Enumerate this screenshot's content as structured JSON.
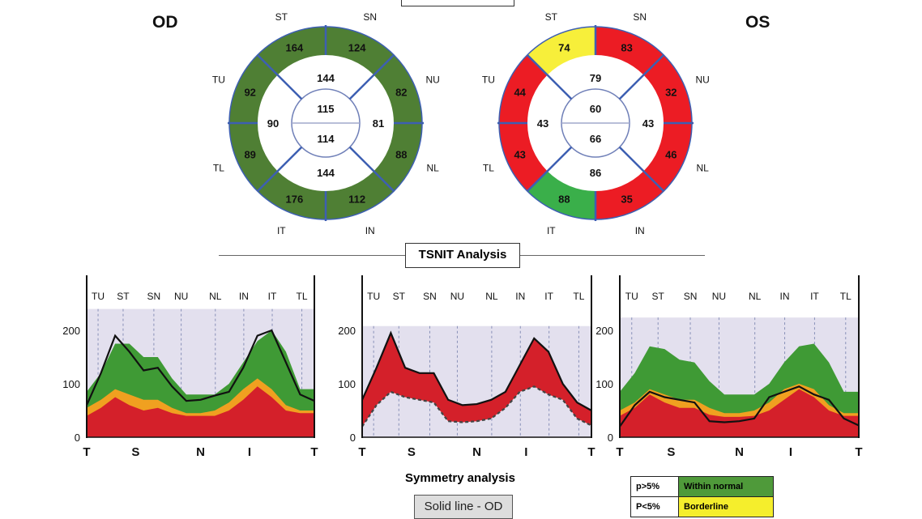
{
  "headings": {
    "od": "OD",
    "os": "OS",
    "tsnit": "TSNIT Analysis",
    "symmetry": "Symmetry analysis",
    "solid_line": "Solid line - OD",
    "top_box": ""
  },
  "colors": {
    "od_green": "#4f7f34",
    "os_red": "#ec1c24",
    "os_yellow": "#f7ef3a",
    "os_green": "#3aaf4a",
    "divider": "#3d5fb2",
    "chart_bg": "#e3e0ee",
    "band_green": "#3f9a35",
    "band_yellow": "#f0a020",
    "band_red": "#d4202a"
  },
  "sector_labels": [
    "ST",
    "SN",
    "NU",
    "NL",
    "IN",
    "IT",
    "TL",
    "TU"
  ],
  "od_map": {
    "outer": {
      "ST": {
        "value": "164",
        "status": "normal"
      },
      "SN": {
        "value": "124",
        "status": "normal"
      },
      "NU": {
        "value": "82",
        "status": "normal"
      },
      "NL": {
        "value": "88",
        "status": "normal"
      },
      "IN": {
        "value": "112",
        "status": "normal"
      },
      "IT": {
        "value": "176",
        "status": "normal"
      },
      "TL": {
        "value": "89",
        "status": "normal"
      },
      "TU": {
        "value": "92",
        "status": "normal"
      }
    },
    "inner": {
      "superior": "144",
      "nasal": "81",
      "inferior": "144",
      "temporal": "90"
    },
    "center": {
      "upper": "115",
      "lower": "114"
    }
  },
  "os_map": {
    "outer": {
      "ST": {
        "value": "74",
        "status": "borderline"
      },
      "SN": {
        "value": "83",
        "status": "outside"
      },
      "NU": {
        "value": "32",
        "status": "outside"
      },
      "NL": {
        "value": "46",
        "status": "outside"
      },
      "IN": {
        "value": "35",
        "status": "outside"
      },
      "IT": {
        "value": "88",
        "status": "normal_bright"
      },
      "TL": {
        "value": "43",
        "status": "outside"
      },
      "TU": {
        "value": "44",
        "status": "outside"
      }
    },
    "inner": {
      "superior": "79",
      "nasal": "43",
      "inferior": "86",
      "temporal": "43"
    },
    "center": {
      "upper": "60",
      "lower": "66"
    }
  },
  "chart_data": [
    {
      "type": "area",
      "panel": "OD",
      "top_labels": [
        "TU",
        "ST",
        "SN",
        "NU",
        "NL",
        "IN",
        "IT",
        "TL"
      ],
      "bottom_labels": [
        "T",
        "S",
        "N",
        "I",
        "T"
      ],
      "yticks": [
        "0",
        "100",
        "200"
      ],
      "ylim": [
        0,
        240
      ],
      "bands": {
        "green_upper": [
          85,
          120,
          175,
          175,
          150,
          150,
          110,
          80,
          80,
          80,
          100,
          140,
          180,
          200,
          160,
          90,
          90
        ],
        "yellow_upper": [
          55,
          70,
          90,
          80,
          70,
          70,
          55,
          45,
          45,
          50,
          65,
          90,
          110,
          90,
          60,
          50,
          50
        ],
        "red_upper": [
          40,
          55,
          75,
          60,
          50,
          55,
          45,
          40,
          40,
          40,
          50,
          70,
          95,
          75,
          50,
          45,
          45
        ]
      },
      "line": [
        60,
        120,
        190,
        160,
        125,
        130,
        95,
        68,
        70,
        78,
        85,
        130,
        190,
        200,
        140,
        80,
        68
      ]
    },
    {
      "type": "area",
      "panel": "Symmetry",
      "top_labels": [
        "TU",
        "ST",
        "SN",
        "NU",
        "NL",
        "IN",
        "IT",
        "TL"
      ],
      "bottom_labels": [
        "T",
        "S",
        "N",
        "I",
        "T"
      ],
      "yticks": [
        "0",
        "100",
        "200"
      ],
      "ylim": [
        0,
        208
      ],
      "od_line": [
        70,
        130,
        195,
        130,
        120,
        120,
        70,
        60,
        62,
        70,
        85,
        135,
        185,
        160,
        100,
        65,
        50
      ],
      "os_line": [
        20,
        60,
        85,
        75,
        70,
        65,
        30,
        28,
        30,
        35,
        55,
        85,
        95,
        80,
        70,
        35,
        22
      ]
    },
    {
      "type": "area",
      "panel": "OS",
      "top_labels": [
        "TU",
        "ST",
        "SN",
        "NU",
        "NL",
        "IN",
        "IT",
        "TL"
      ],
      "bottom_labels": [
        "T",
        "S",
        "N",
        "I",
        "T"
      ],
      "yticks": [
        "0",
        "100",
        "200"
      ],
      "ylim": [
        0,
        224
      ],
      "bands": {
        "green_upper": [
          85,
          120,
          170,
          165,
          145,
          140,
          105,
          80,
          80,
          80,
          100,
          140,
          170,
          175,
          140,
          85,
          85
        ],
        "yellow_upper": [
          50,
          65,
          90,
          80,
          70,
          70,
          55,
          45,
          45,
          50,
          65,
          90,
          100,
          90,
          60,
          45,
          45
        ],
        "red_upper": [
          40,
          55,
          80,
          65,
          55,
          55,
          42,
          38,
          38,
          40,
          50,
          70,
          90,
          75,
          50,
          40,
          40
        ]
      },
      "line": [
        20,
        60,
        85,
        75,
        70,
        65,
        30,
        28,
        30,
        35,
        75,
        85,
        95,
        80,
        70,
        35,
        22
      ]
    }
  ],
  "legend": [
    {
      "p": "p>5%",
      "label": "Within normal",
      "color": "#4f9a3a"
    },
    {
      "p": "P<5%",
      "label": "Borderline",
      "color": "#f5ee2c"
    }
  ]
}
